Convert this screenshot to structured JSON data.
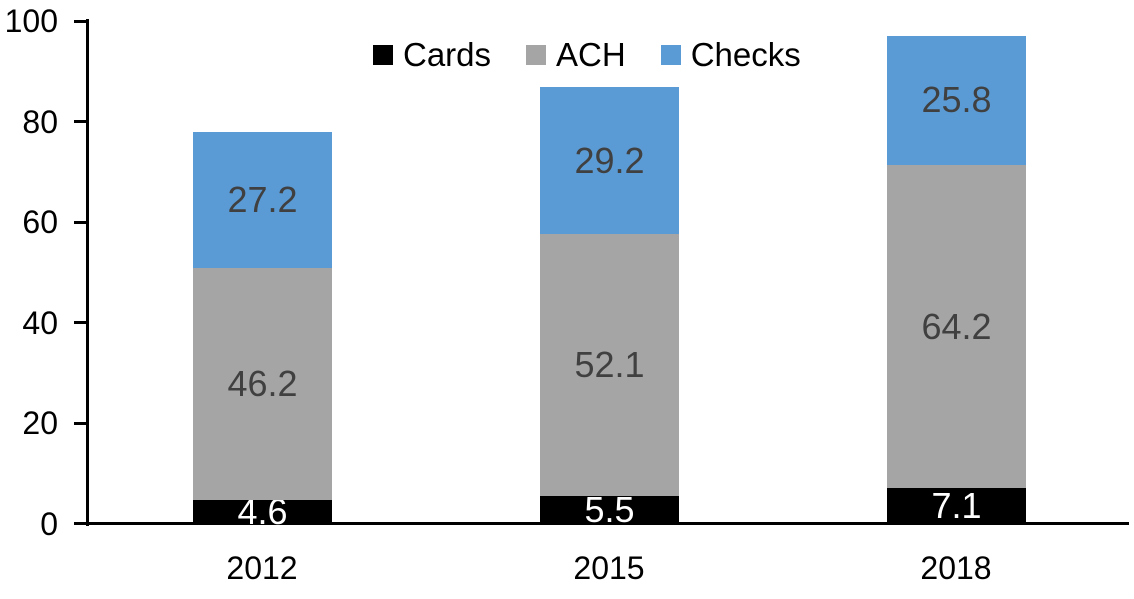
{
  "chart_data": {
    "type": "bar",
    "stacked": true,
    "title": "",
    "xlabel": "",
    "ylabel": "",
    "categories": [
      "2012",
      "2015",
      "2018"
    ],
    "series": [
      {
        "name": "Cards",
        "color": "#000000",
        "label_color": "#ffffff",
        "values": [
          4.6,
          5.5,
          7.1
        ]
      },
      {
        "name": "ACH",
        "color": "#a5a5a5",
        "label_color": "#404040",
        "values": [
          46.2,
          52.1,
          64.2
        ]
      },
      {
        "name": "Checks",
        "color": "#5b9bd5",
        "label_color": "#404040",
        "values": [
          27.2,
          29.2,
          25.8
        ]
      }
    ],
    "ylim": [
      0,
      100
    ],
    "yticks": [
      0,
      20,
      40,
      60,
      80,
      100
    ],
    "grid": false,
    "legend_position": "top-center",
    "data_labels_shown": true,
    "axis_color": "#000000",
    "background_color": "#ffffff"
  }
}
